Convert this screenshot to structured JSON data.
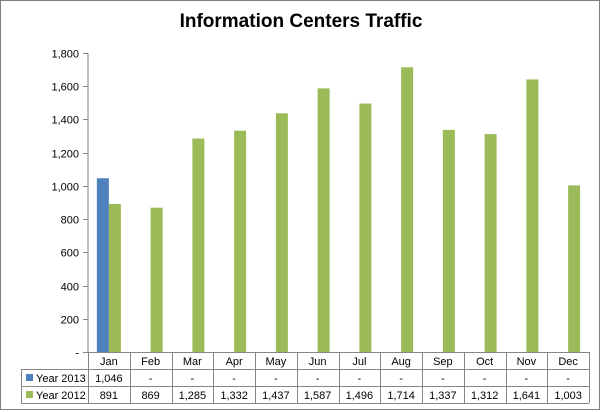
{
  "chart_data": {
    "type": "bar",
    "title": "Information Centers Traffic",
    "xlabel": "",
    "ylabel": "",
    "categories": [
      "Jan",
      "Feb",
      "Mar",
      "Apr",
      "May",
      "Jun",
      "Jul",
      "Aug",
      "Sep",
      "Oct",
      "Nov",
      "Dec"
    ],
    "series": [
      {
        "name": "Year 2013",
        "color": "#4f81bd",
        "values": [
          1046,
          null,
          null,
          null,
          null,
          null,
          null,
          null,
          null,
          null,
          null,
          null
        ],
        "table_labels": [
          "1,046",
          "-",
          "-",
          "-",
          "-",
          "-",
          "-",
          "-",
          "-",
          "-",
          "-",
          "-"
        ]
      },
      {
        "name": "Year 2012",
        "color": "#9bbb59",
        "values": [
          891,
          869,
          1285,
          1332,
          1437,
          1587,
          1496,
          1714,
          1337,
          1312,
          1641,
          1003
        ],
        "table_labels": [
          "891",
          "869",
          "1,285",
          "1,332",
          "1,437",
          "1,587",
          "1,496",
          "1,714",
          "1,337",
          "1,312",
          "1,641",
          "1,003"
        ]
      }
    ],
    "ylim": [
      0,
      1800
    ],
    "yticks": [
      0,
      200,
      400,
      600,
      800,
      1000,
      1200,
      1400,
      1600,
      1800
    ],
    "ytick_labels": [
      "-",
      "200",
      "400",
      "600",
      "800",
      "1,000",
      "1,200",
      "1,400",
      "1,600",
      "1,800"
    ],
    "grid": false,
    "legend": "data-table"
  }
}
